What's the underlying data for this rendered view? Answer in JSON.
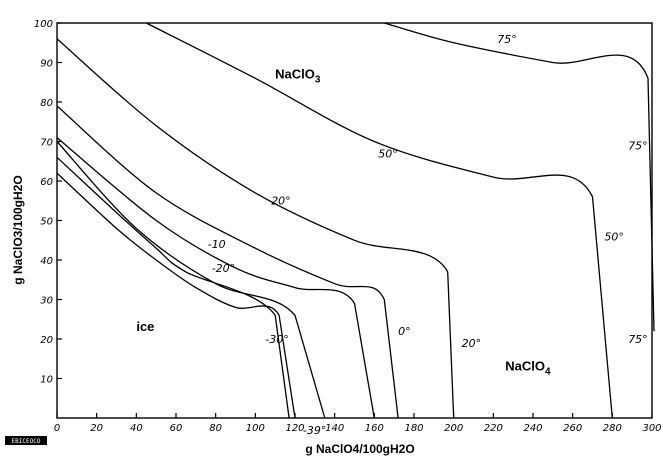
{
  "chart_data": {
    "type": "line",
    "xlabel": "g NaClO4/100gH2O",
    "ylabel": "g NaClO3/100gH2O",
    "xlim": [
      0,
      300
    ],
    "ylim": [
      0,
      100
    ],
    "x_ticks": [
      0,
      20,
      40,
      60,
      80,
      100,
      120,
      140,
      160,
      180,
      200,
      220,
      240,
      260,
      280,
      300
    ],
    "y_ticks": [
      10,
      20,
      30,
      40,
      50,
      60,
      70,
      80,
      90,
      100
    ],
    "grid": false,
    "series": [
      {
        "points": [
          [
            0,
            66
          ],
          [
            30,
            52
          ],
          [
            50,
            43
          ],
          [
            65,
            37
          ],
          [
            110,
            26
          ],
          [
            117,
            0
          ]
        ]
      },
      {
        "points": [
          [
            0,
            62
          ],
          [
            30,
            48
          ],
          [
            50,
            40
          ],
          [
            70,
            33
          ],
          [
            90,
            28
          ],
          [
            112,
            26
          ],
          [
            120,
            0
          ]
        ]
      },
      {
        "points": [
          [
            0,
            70
          ],
          [
            40,
            48
          ],
          [
            80,
            34
          ],
          [
            120,
            26
          ],
          [
            135,
            0
          ]
        ]
      },
      {
        "points": [
          [
            0,
            71
          ],
          [
            50,
            50
          ],
          [
            90,
            38
          ],
          [
            120,
            33
          ],
          [
            150,
            29
          ],
          [
            160,
            0
          ]
        ]
      },
      {
        "points": [
          [
            0,
            79
          ],
          [
            50,
            57
          ],
          [
            100,
            43
          ],
          [
            140,
            34
          ],
          [
            165,
            30
          ],
          [
            172,
            0
          ]
        ]
      },
      {
        "points": [
          [
            0,
            96
          ],
          [
            50,
            74
          ],
          [
            100,
            57
          ],
          [
            150,
            45
          ],
          [
            197,
            37
          ],
          [
            200,
            0
          ]
        ]
      },
      {
        "points": [
          [
            45,
            100
          ],
          [
            100,
            86
          ],
          [
            160,
            70
          ],
          [
            220,
            61
          ],
          [
            270,
            56
          ],
          [
            280,
            0
          ]
        ]
      },
      {
        "points": [
          [
            165,
            100
          ],
          [
            200,
            95
          ],
          [
            250,
            90
          ],
          [
            298,
            86
          ],
          [
            303,
            22
          ]
        ]
      }
    ],
    "annotations": {
      "region_nacl03": {
        "text": "NaClO",
        "sub": "3",
        "x": 110,
        "y": 86
      },
      "region_naclo4": {
        "text": "NaClO",
        "sub": "4",
        "x": 226,
        "y": 12
      },
      "region_ice": {
        "text": "ice",
        "x": 40,
        "y": 22
      }
    },
    "temperature_labels": [
      {
        "text": "75°",
        "x": 222,
        "y": 95
      },
      {
        "text": "75°",
        "x": 288,
        "y": 68
      },
      {
        "text": "75°",
        "x": 288,
        "y": 19
      },
      {
        "text": "50°",
        "x": 162,
        "y": 66
      },
      {
        "text": "50°",
        "x": 276,
        "y": 45
      },
      {
        "text": "20°",
        "x": 108,
        "y": 54
      },
      {
        "text": "20°",
        "x": 204,
        "y": 18
      },
      {
        "text": "-10",
        "x": 76,
        "y": 43
      },
      {
        "text": "-20°",
        "x": 78,
        "y": 37
      },
      {
        "text": "0°",
        "x": 172,
        "y": 21
      },
      {
        "text": "-30°",
        "x": 105,
        "y": 19
      },
      {
        "text": "-39°",
        "x": 124,
        "y": -4
      }
    ]
  },
  "logo": {
    "text": "EBICEOCO"
  }
}
